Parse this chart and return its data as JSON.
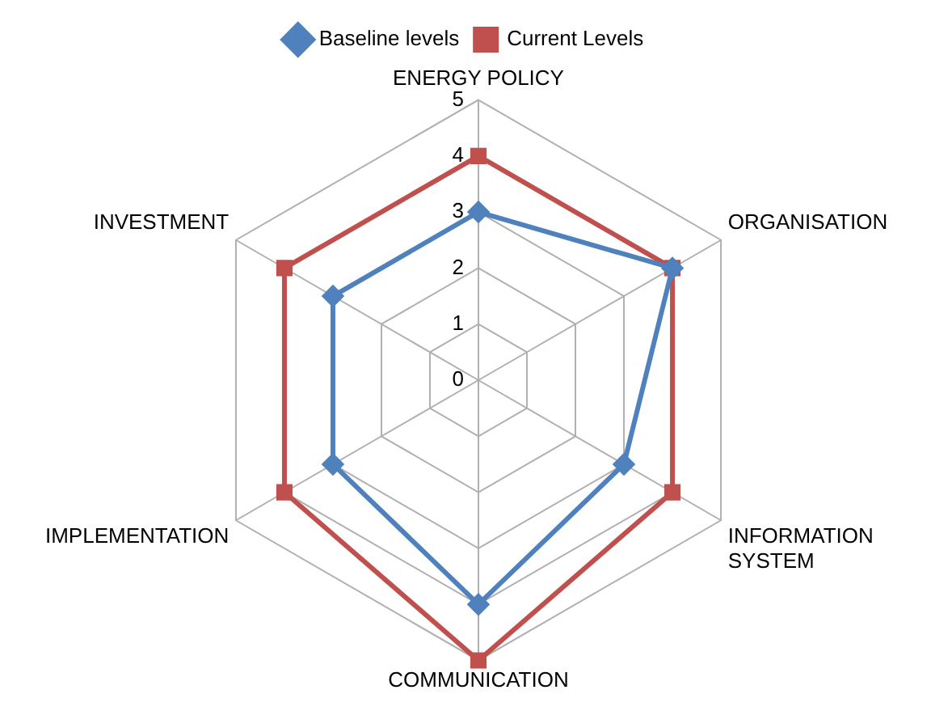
{
  "chart_data": {
    "type": "radar",
    "categories": [
      "ENERGY POLICY",
      "ORGANISATION",
      "INFORMATION SYSTEM",
      "COMMUNICATION",
      "IMPLEMENTATION",
      "INVESTMENT"
    ],
    "series": [
      {
        "name": "Baseline levels",
        "color": "#4f81bd",
        "marker": "diamond",
        "values": [
          3,
          4,
          3,
          4,
          3,
          3
        ]
      },
      {
        "name": "Current Levels",
        "color": "#c0504d",
        "marker": "square",
        "values": [
          4,
          4,
          4,
          5,
          4,
          4
        ]
      }
    ],
    "ylim": [
      0,
      5
    ],
    "yticks": [
      0,
      1,
      2,
      3,
      4,
      5
    ],
    "grid": true,
    "legend": "top"
  }
}
